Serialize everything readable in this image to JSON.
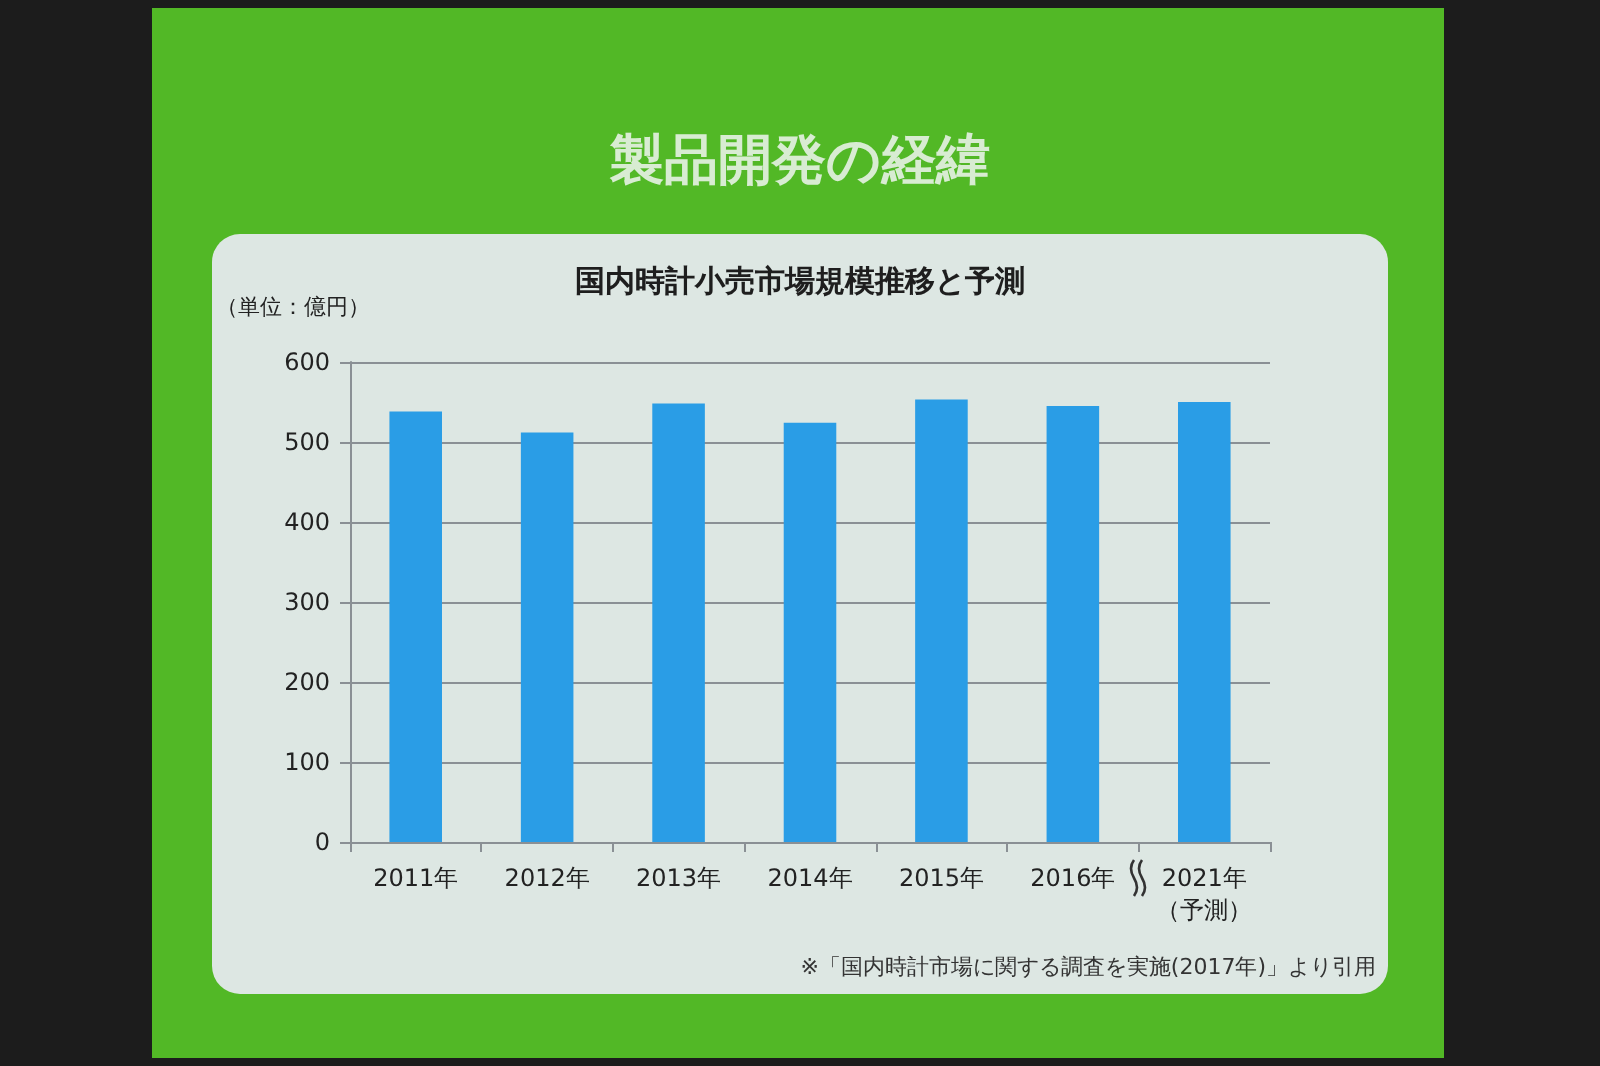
{
  "chart_data": {
    "type": "bar",
    "title": "製品開発の経緯",
    "subtitle": "国内時計小売市場規模推移と予測",
    "ylabel": "（単位：億円）",
    "categories": [
      "2011年",
      "2012年",
      "2013年",
      "2014年",
      "2015年",
      "2016年",
      "2021年（予測）"
    ],
    "values": [
      538,
      512,
      548,
      524,
      553,
      545,
      550
    ],
    "color": "#2a9de6",
    "ylim": [
      0,
      600
    ],
    "yticks": [
      0,
      100,
      200,
      300,
      400,
      500,
      600
    ],
    "grid": "y",
    "annotations": [
      "※「国内時計市場に関する調査を実施(2017年)」より引用"
    ]
  }
}
